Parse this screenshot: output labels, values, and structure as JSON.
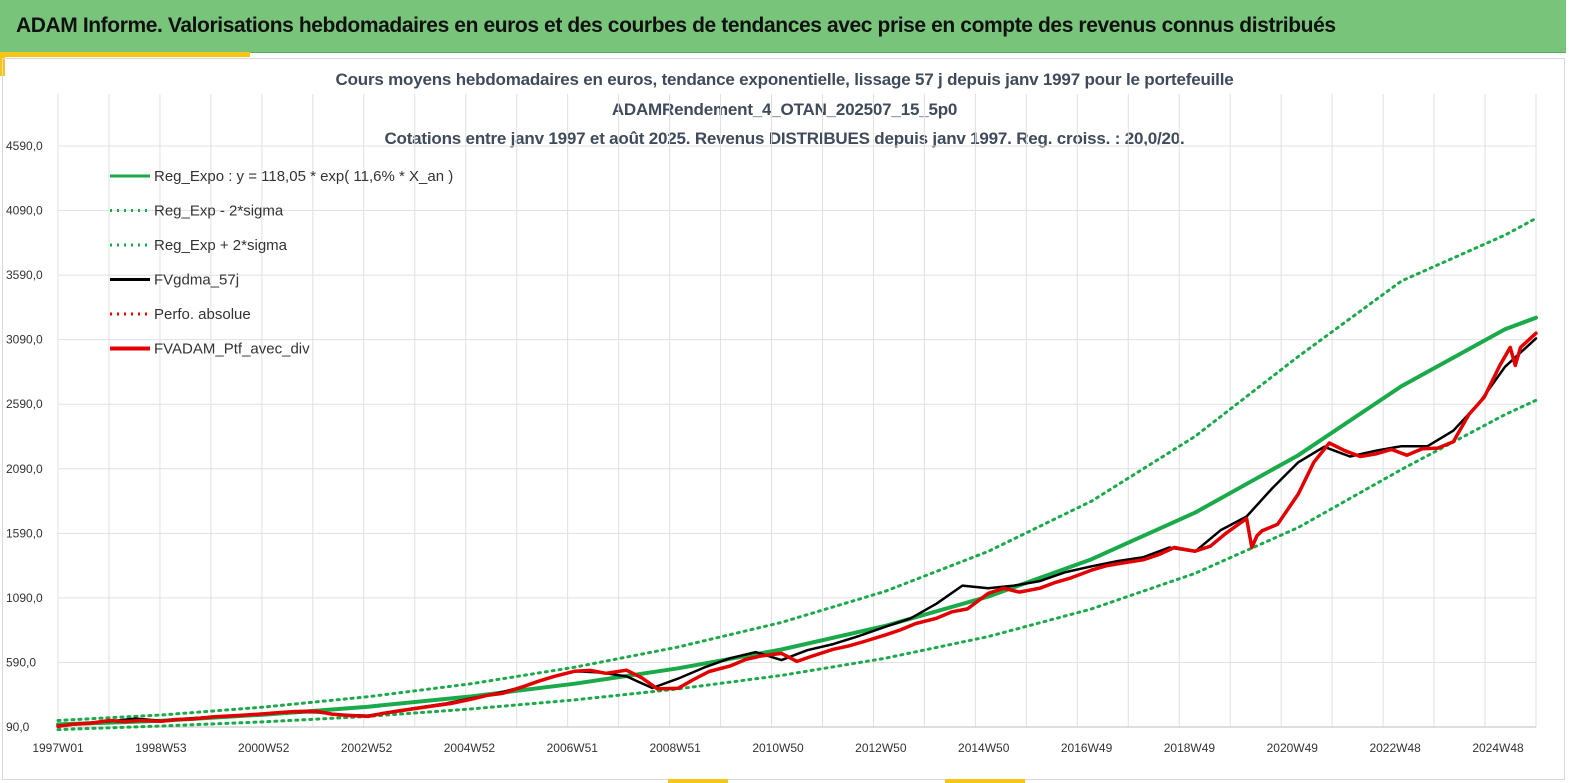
{
  "banner": {
    "title": "ADAM Informe. Valorisations hebdomadaires en euros et des courbes de tendances avec prise en compte des revenus connus distribués"
  },
  "colors": {
    "banner_bg": "#77c47a",
    "accent": "#f5c518",
    "trend": "#1aaa4a",
    "smooth": "#000000",
    "portfolio": "#e30000",
    "grid": "#e0e0e0"
  },
  "chart_data": {
    "type": "line",
    "title_lines": [
      "Cours moyens hebdomadaires  en euros, tendance exponentielle, lissage 57 j depuis janv 1997 pour le portefeuille",
      "ADAMRendement_4_OTAN_202507_15_5p0",
      "Cotations entre janv 1997 et août 2025. Revenus DISTRIBUES depuis janv 1997. Reg. croiss. : 20,0/20."
    ],
    "x_ticks": [
      "1997W01",
      "1998W53",
      "2000W52",
      "2002W52",
      "2004W52",
      "2006W51",
      "2008W51",
      "2010W50",
      "2012W50",
      "2014W50",
      "2016W49",
      "2018W49",
      "2020W49",
      "2022W48",
      "2024W48"
    ],
    "y_ticks": [
      "90,0",
      "590,0",
      "1090,0",
      "1590,0",
      "2090,0",
      "2590,0",
      "3090,0",
      "3590,0",
      "4090,0",
      "4590,0"
    ],
    "ylim": [
      90,
      4590
    ],
    "xlim_years": [
      1997.0,
      2025.6
    ],
    "grid": true,
    "legend_position": "top-left",
    "legend": [
      {
        "label": "Reg_Expo : y = 118,05 * exp( 11,6% *  X_an )",
        "color": "#1aaa4a",
        "style": "solid"
      },
      {
        "label": "Reg_Exp - 2*sigma",
        "color": "#1aaa4a",
        "style": "dotted"
      },
      {
        "label": "Reg_Exp + 2*sigma",
        "color": "#1aaa4a",
        "style": "dotted"
      },
      {
        "label": "FVgdma_57j",
        "color": "#000000",
        "style": "solid"
      },
      {
        "label": "Perfo. absolue",
        "color": "#e30000",
        "style": "dotted"
      },
      {
        "label": "FVADAM_Ptf_avec_div",
        "color": "#e30000",
        "style": "solid-thick"
      }
    ],
    "series": [
      {
        "name": "Reg_Expo : y = 118,05 * exp( 11,6% *  X_an )",
        "x": [
          1997.0,
          1999.0,
          2001.0,
          2003.0,
          2005.0,
          2007.0,
          2009.0,
          2011.0,
          2013.0,
          2015.0,
          2017.0,
          2019.0,
          2021.0,
          2023.0,
          2025.0,
          2025.6
        ],
        "y": [
          110,
          138,
          186,
          247,
          327,
          425,
          545,
          690,
          872,
          1100,
          1390,
          1750,
          2195,
          2730,
          3170,
          3260
        ]
      },
      {
        "name": "Reg_Exp - 2*sigma",
        "x": [
          1997.0,
          1999.0,
          2001.0,
          2003.0,
          2005.0,
          2007.0,
          2009.0,
          2011.0,
          2013.0,
          2015.0,
          2017.0,
          2019.0,
          2021.0,
          2023.0,
          2025.0,
          2025.6
        ],
        "y": [
          70,
          98,
          130,
          172,
          230,
          300,
          385,
          490,
          622,
          790,
          1005,
          1280,
          1635,
          2085,
          2510,
          2620
        ]
      },
      {
        "name": "Reg_Exp + 2*sigma",
        "x": [
          1997.0,
          1999.0,
          2001.0,
          2003.0,
          2005.0,
          2007.0,
          2009.0,
          2011.0,
          2013.0,
          2015.0,
          2017.0,
          2019.0,
          2021.0,
          2023.0,
          2025.0,
          2025.6
        ],
        "y": [
          140,
          183,
          245,
          325,
          425,
          553,
          710,
          900,
          1140,
          1450,
          1840,
          2340,
          2960,
          3545,
          3900,
          4030
        ]
      },
      {
        "name": "FVgdma_57j",
        "x": [
          1997.0,
          1997.5,
          1998.0,
          1998.5,
          1999.0,
          1999.5,
          2000.0,
          2000.5,
          2001.0,
          2001.5,
          2002.0,
          2002.5,
          2003.0,
          2003.5,
          2004.0,
          2004.5,
          2005.0,
          2005.5,
          2006.0,
          2006.5,
          2007.0,
          2007.5,
          2008.0,
          2008.5,
          2009.0,
          2009.5,
          2010.0,
          2010.5,
          2011.0,
          2011.5,
          2012.0,
          2012.5,
          2013.0,
          2013.5,
          2014.0,
          2014.5,
          2015.0,
          2015.5,
          2016.0,
          2016.5,
          2017.0,
          2017.5,
          2018.0,
          2018.5,
          2019.0,
          2019.5,
          2020.0,
          2020.5,
          2021.0,
          2021.5,
          2022.0,
          2022.5,
          2023.0,
          2023.5,
          2024.0,
          2024.5,
          2025.0,
          2025.6
        ],
        "y": [
          100,
          120,
          133,
          155,
          138,
          155,
          168,
          180,
          193,
          206,
          204,
          184,
          178,
          212,
          242,
          272,
          312,
          352,
          402,
          470,
          522,
          512,
          482,
          392,
          465,
          550,
          622,
          670,
          608,
          685,
          732,
          795,
          865,
          932,
          1045,
          1185,
          1165,
          1185,
          1220,
          1290,
          1335,
          1375,
          1405,
          1480,
          1448,
          1615,
          1720,
          1940,
          2140,
          2260,
          2185,
          2230,
          2265,
          2265,
          2385,
          2600,
          2880,
          3100
        ]
      },
      {
        "name": "FVADAM_Ptf_avec_div",
        "x": [
          1997.0,
          1997.3,
          1997.6,
          1998.0,
          1998.3,
          1998.6,
          1999.0,
          1999.3,
          1999.6,
          2000.0,
          2000.3,
          2000.6,
          2001.0,
          2001.3,
          2001.6,
          2002.0,
          2002.3,
          2002.6,
          2003.0,
          2003.3,
          2003.6,
          2004.0,
          2004.3,
          2004.6,
          2005.0,
          2005.3,
          2005.6,
          2006.0,
          2006.3,
          2006.6,
          2007.0,
          2007.3,
          2007.6,
          2008.0,
          2008.3,
          2008.6,
          2009.0,
          2009.3,
          2009.6,
          2010.0,
          2010.3,
          2010.6,
          2011.0,
          2011.3,
          2011.6,
          2012.0,
          2012.3,
          2012.6,
          2013.0,
          2013.3,
          2013.6,
          2014.0,
          2014.3,
          2014.6,
          2015.0,
          2015.3,
          2015.6,
          2016.0,
          2016.3,
          2016.6,
          2017.0,
          2017.3,
          2017.6,
          2018.0,
          2018.3,
          2018.6,
          2019.0,
          2019.3,
          2019.6,
          2020.0,
          2020.1,
          2020.2,
          2020.3,
          2020.6,
          2021.0,
          2021.3,
          2021.6,
          2021.9,
          2022.2,
          2022.5,
          2022.8,
          2023.1,
          2023.4,
          2023.7,
          2024.0,
          2024.3,
          2024.6,
          2024.9,
          2025.1,
          2025.2,
          2025.3,
          2025.6
        ],
        "y": [
          95,
          112,
          118,
          140,
          132,
          140,
          135,
          148,
          152,
          168,
          175,
          182,
          192,
          202,
          210,
          212,
          190,
          180,
          172,
          196,
          215,
          238,
          256,
          272,
          305,
          335,
          350,
          402,
          445,
          482,
          522,
          528,
          506,
          530,
          470,
          385,
          390,
          458,
          520,
          562,
          612,
          640,
          660,
          598,
          640,
          692,
          718,
          752,
          802,
          842,
          892,
          932,
          982,
          1005,
          1125,
          1165,
          1135,
          1165,
          1210,
          1245,
          1305,
          1340,
          1360,
          1385,
          1425,
          1480,
          1452,
          1490,
          1590,
          1705,
          1480,
          1570,
          1610,
          1660,
          1895,
          2140,
          2290,
          2230,
          2185,
          2205,
          2240,
          2195,
          2245,
          2250,
          2300,
          2510,
          2645,
          2890,
          3030,
          2890,
          3030,
          3140
        ]
      }
    ]
  }
}
